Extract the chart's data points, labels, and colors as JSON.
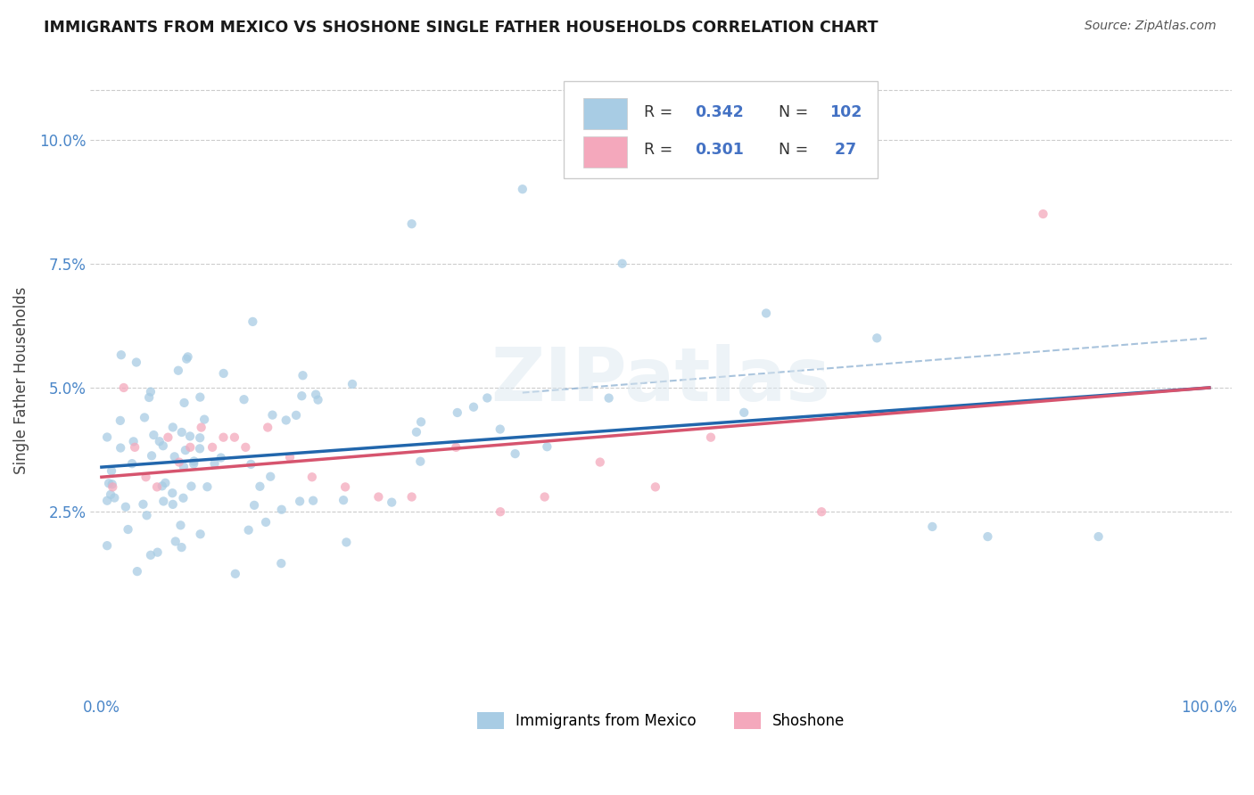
{
  "title": "IMMIGRANTS FROM MEXICO VS SHOSHONE SINGLE FATHER HOUSEHOLDS CORRELATION CHART",
  "source": "Source: ZipAtlas.com",
  "ylabel": "Single Father Households",
  "ytick_labels": [
    "2.5%",
    "5.0%",
    "7.5%",
    "10.0%"
  ],
  "ytick_values": [
    0.025,
    0.05,
    0.075,
    0.1
  ],
  "xlim": [
    -0.01,
    1.02
  ],
  "ylim": [
    -0.012,
    0.115
  ],
  "blue_color": "#a8cce4",
  "pink_color": "#f4a8bc",
  "blue_line_color": "#2166ac",
  "pink_line_color": "#d6546e",
  "dashed_line_color": "#92b4d4",
  "watermark": "ZIPatlas",
  "tick_color": "#4a86c8",
  "grid_color": "#cccccc",
  "title_color": "#1a1a1a",
  "source_color": "#555555",
  "blue_line_y0": 0.034,
  "blue_line_y1": 0.05,
  "pink_line_y0": 0.032,
  "pink_line_y1": 0.05,
  "dashed_line_x0": 0.38,
  "dashed_line_x1": 1.0,
  "dashed_line_y0": 0.049,
  "dashed_line_y1": 0.06
}
